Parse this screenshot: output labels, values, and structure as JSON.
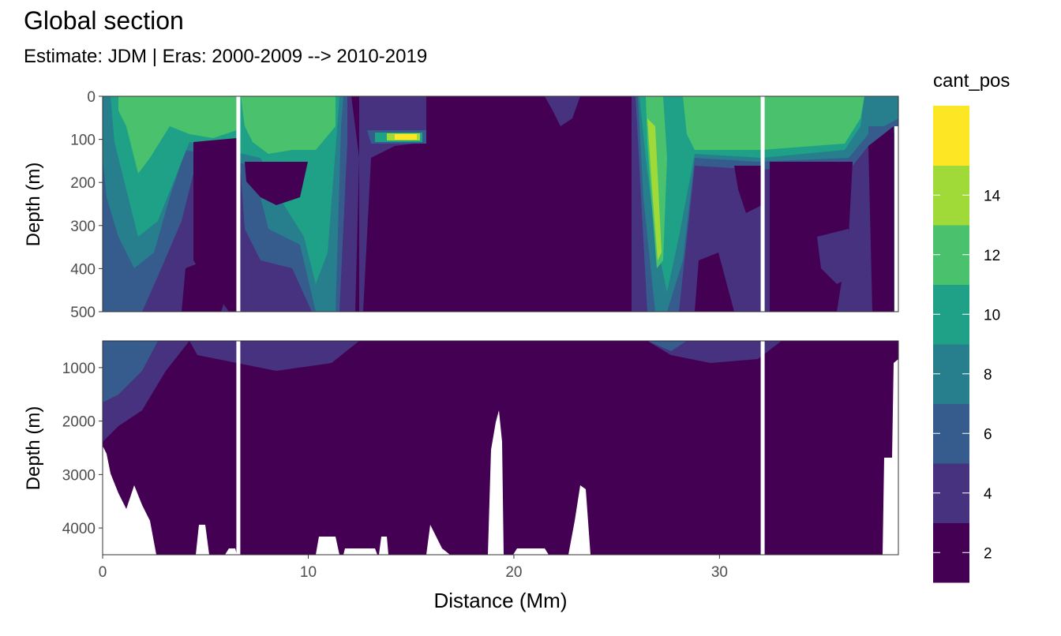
{
  "header": {
    "title": "Global section",
    "subtitle": "Estimate: JDM  | Eras: 2000-2009 --> 2010-2019"
  },
  "chart_data": {
    "type": "heatmap",
    "title": "Global section",
    "subtitle": "Estimate: JDM  | Eras: 2000-2009 --> 2010-2019",
    "xlabel": "Distance (Mm)",
    "ylabel": "Depth (m)",
    "xlim": [
      0,
      38.7
    ],
    "x_ticks": [
      "0",
      "10",
      "20",
      "30"
    ],
    "panels": [
      {
        "name": "upper",
        "ylim": [
          0,
          500
        ],
        "y_ticks": [
          "0",
          "100",
          "200",
          "300",
          "400",
          "500"
        ]
      },
      {
        "name": "lower",
        "ylim": [
          500,
          4500
        ],
        "y_ticks": [
          "1000",
          "2000",
          "3000",
          "4000"
        ]
      }
    ],
    "gaps_x": [
      6.6,
      32.1
    ],
    "legend": {
      "title": "cant_pos",
      "position": "right",
      "breaks": [
        "2",
        "4",
        "6",
        "8",
        "10",
        "12",
        "14"
      ],
      "colors": [
        "#440154",
        "#46327E",
        "#365C8D",
        "#277F8E",
        "#1FA187",
        "#4AC16D",
        "#A0DA39",
        "#FDE725"
      ]
    },
    "grid": true
  }
}
